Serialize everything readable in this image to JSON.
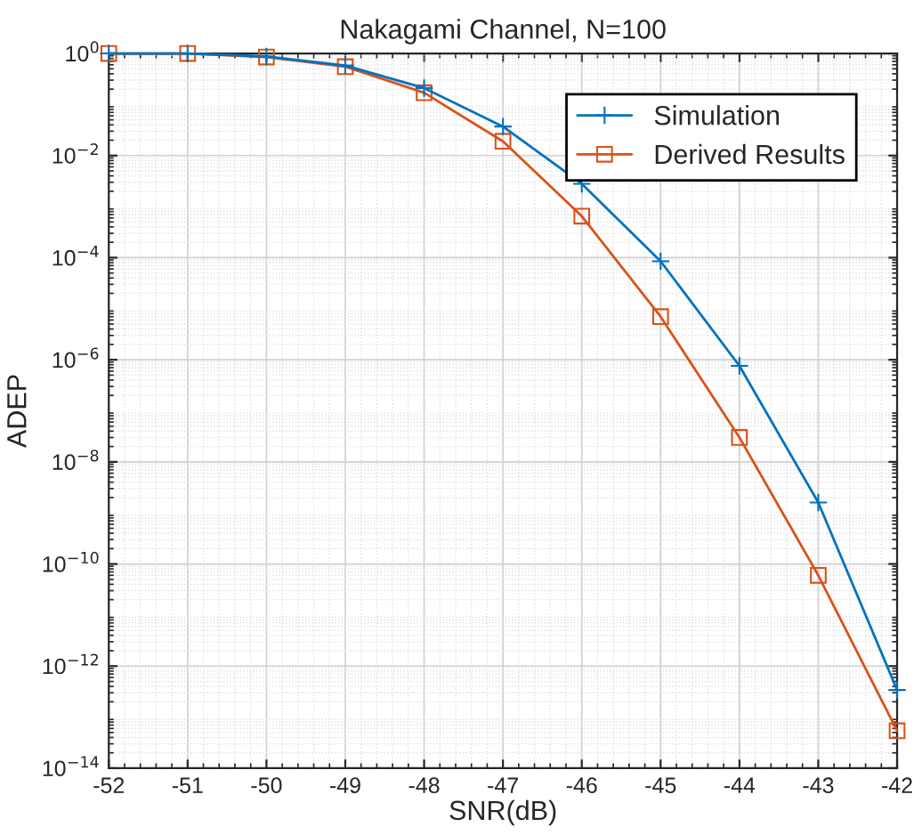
{
  "chart_data": {
    "type": "line",
    "title": "Nakagami Channel, N=100",
    "xlabel": "SNR(dB)",
    "ylabel": "ADEP",
    "x": [
      -52,
      -51,
      -50,
      -49,
      -48,
      -47,
      -46,
      -45,
      -44,
      -43,
      -42
    ],
    "series": [
      {
        "name": "Simulation",
        "color": "#0072bd",
        "marker": "cross",
        "values": [
          1,
          1,
          0.87,
          0.58,
          0.21,
          0.037,
          0.0028,
          8.5e-05,
          7.6e-07,
          1.6e-09,
          3.4e-13
        ]
      },
      {
        "name": "Derived Results",
        "color": "#d95319",
        "marker": "square",
        "values": [
          1,
          1,
          0.85,
          0.55,
          0.17,
          0.019,
          0.00065,
          7e-06,
          3e-08,
          6e-11,
          5.4e-14
        ]
      }
    ],
    "log": "y",
    "xlim": [
      -52,
      -42
    ],
    "xticks": [
      -52,
      -51,
      -50,
      -49,
      -48,
      -47,
      -46,
      -45,
      -44,
      -43,
      -42
    ],
    "ylim": [
      1e-14,
      1
    ],
    "yticks": [
      {
        "value": 1e-14,
        "label": "10$^{−14}$"
      },
      {
        "value": 1e-12,
        "label": "10$^{−12}$"
      },
      {
        "value": 1e-10,
        "label": "10$^{−10}$"
      },
      {
        "value": 1e-08,
        "label": "10$^{−8}$"
      },
      {
        "value": 1e-06,
        "label": "10$^{−6}$"
      },
      {
        "value": 0.0001,
        "label": "10$^{−4}$"
      },
      {
        "value": 0.01,
        "label": "10$^{−2}$"
      },
      {
        "value": 1,
        "label": "10$^{0}$"
      }
    ],
    "grid": true,
    "legend": "top right",
    "line_style": "solid"
  }
}
